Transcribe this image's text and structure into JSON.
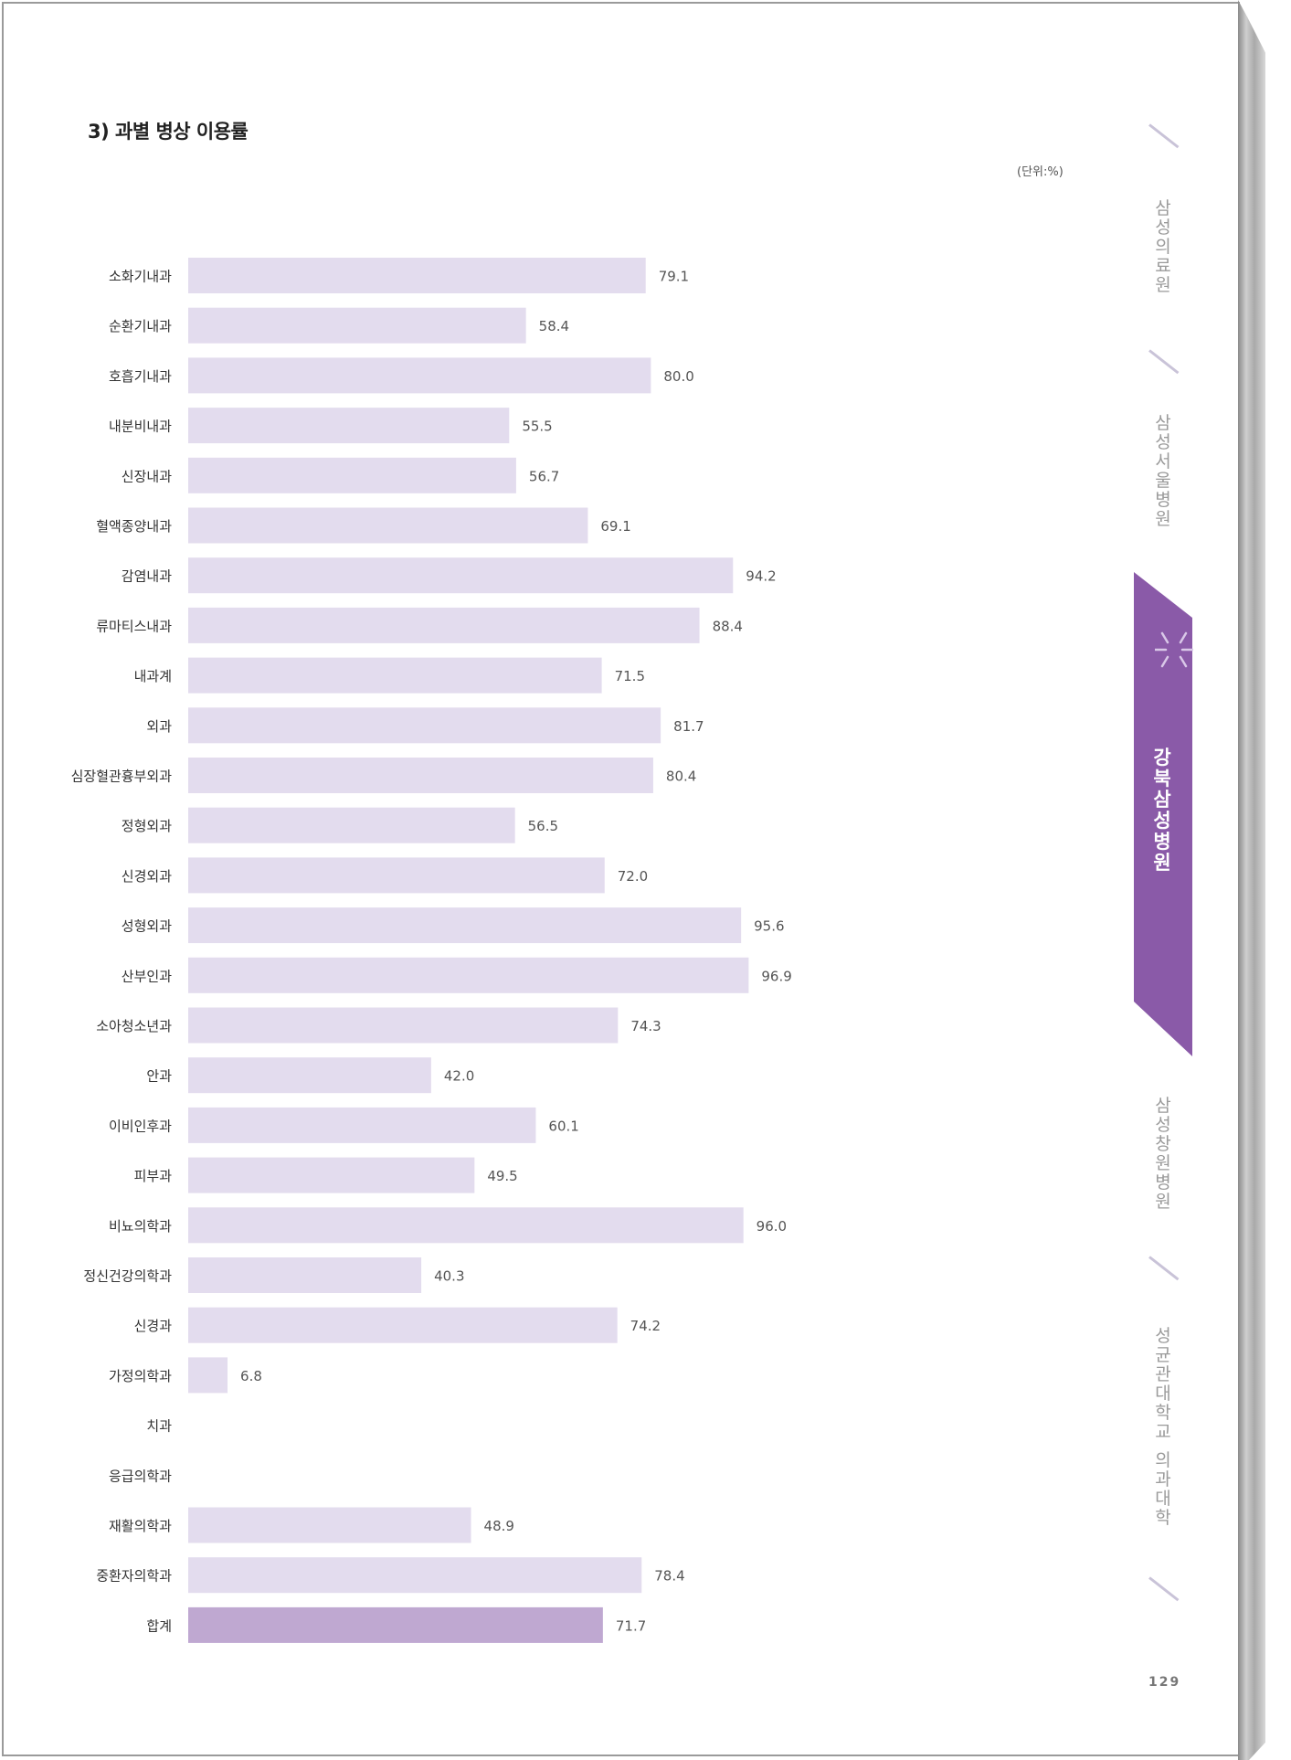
{
  "title": "3) 과별 병상 이용률",
  "unit": "(단위:%)",
  "page_number": "129",
  "side_nav": [
    {
      "label": "삼성의료원",
      "active": false
    },
    {
      "label": "삼성서울병원",
      "active": false
    },
    {
      "label": "강북삼성병원",
      "active": true
    },
    {
      "label": "삼성창원병원",
      "active": false
    },
    {
      "label": "성균관대학교 의과대학",
      "active": false
    }
  ],
  "colors": {
    "bar": "#e3dcee",
    "total_bar": "#bfa8d1",
    "accent": "#8a5aa8"
  },
  "chart_data": {
    "type": "bar",
    "orientation": "horizontal",
    "xlim": [
      0,
      100
    ],
    "grid": false,
    "categories": [
      "소화기내과",
      "순환기내과",
      "호흡기내과",
      "내분비내과",
      "신장내과",
      "혈액종양내과",
      "감염내과",
      "류마티스내과",
      "내과계",
      "외과",
      "심장혈관흉부외과",
      "정형외과",
      "신경외과",
      "성형외과",
      "산부인과",
      "소아청소년과",
      "안과",
      "이비인후과",
      "피부과",
      "비뇨의학과",
      "정신건강의학과",
      "신경과",
      "가정의학과",
      "치과",
      "응급의학과",
      "재활의학과",
      "중환자의학과",
      "합계"
    ],
    "values": [
      79.1,
      58.4,
      80.0,
      55.5,
      56.7,
      69.1,
      94.2,
      88.4,
      71.5,
      81.7,
      80.4,
      56.5,
      72.0,
      95.6,
      96.9,
      74.3,
      42.0,
      60.1,
      49.5,
      96.0,
      40.3,
      74.2,
      6.8,
      null,
      null,
      48.9,
      78.4,
      71.7
    ],
    "value_labels": [
      "79.1",
      "58.4",
      "80.0",
      "55.5",
      "56.7",
      "69.1",
      "94.2",
      "88.4",
      "71.5",
      "81.7",
      "80.4",
      "56.5",
      "72.0",
      "95.6",
      "96.9",
      "74.3",
      "42.0",
      "60.1",
      "49.5",
      "96.0",
      "40.3",
      "74.2",
      "6.8",
      "",
      "",
      "48.9",
      "78.4",
      "71.7"
    ]
  }
}
